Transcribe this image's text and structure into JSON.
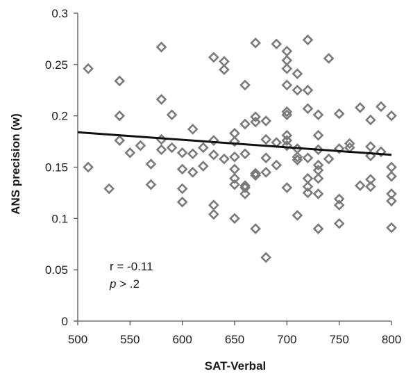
{
  "chart_data": {
    "type": "scatter",
    "xlabel": "SAT-Verbal",
    "ylabel": "ANS precision (w)",
    "xlim": [
      500,
      800
    ],
    "ylim": [
      0,
      0.3
    ],
    "x_ticks": [
      "500",
      "550",
      "600",
      "650",
      "700",
      "750",
      "800"
    ],
    "y_ticks": [
      "0",
      "0.05",
      "0.1",
      "0.15",
      "0.2",
      "0.25",
      "0.3"
    ],
    "annotation": {
      "r_text": "r = -0.11",
      "p_symbol": "p",
      "p_text": " > .2"
    },
    "trendline": {
      "x": [
        500,
        800
      ],
      "y": [
        0.184,
        0.162
      ]
    },
    "series": [
      {
        "points": [
          [
            510,
            0.246
          ],
          [
            510,
            0.15
          ],
          [
            530,
            0.129
          ],
          [
            540,
            0.234
          ],
          [
            540,
            0.2
          ],
          [
            540,
            0.176
          ],
          [
            550,
            0.164
          ],
          [
            560,
            0.171
          ],
          [
            570,
            0.153
          ],
          [
            570,
            0.133
          ],
          [
            580,
            0.267
          ],
          [
            580,
            0.216
          ],
          [
            580,
            0.177
          ],
          [
            580,
            0.167
          ],
          [
            590,
            0.201
          ],
          [
            590,
            0.169
          ],
          [
            600,
            0.164
          ],
          [
            600,
            0.148
          ],
          [
            600,
            0.129
          ],
          [
            600,
            0.116
          ],
          [
            610,
            0.187
          ],
          [
            610,
            0.163
          ],
          [
            610,
            0.145
          ],
          [
            620,
            0.169
          ],
          [
            620,
            0.151
          ],
          [
            630,
            0.257
          ],
          [
            630,
            0.176
          ],
          [
            630,
            0.162
          ],
          [
            630,
            0.113
          ],
          [
            630,
            0.104
          ],
          [
            640,
            0.253
          ],
          [
            640,
            0.245
          ],
          [
            640,
            0.158
          ],
          [
            650,
            0.183
          ],
          [
            650,
            0.175
          ],
          [
            650,
            0.16
          ],
          [
            650,
            0.148
          ],
          [
            650,
            0.139
          ],
          [
            650,
            0.133
          ],
          [
            650,
            0.1
          ],
          [
            660,
            0.23
          ],
          [
            660,
            0.192
          ],
          [
            660,
            0.163
          ],
          [
            660,
            0.132
          ],
          [
            660,
            0.13
          ],
          [
            660,
            0.124
          ],
          [
            670,
            0.271
          ],
          [
            670,
            0.199
          ],
          [
            670,
            0.194
          ],
          [
            670,
            0.144
          ],
          [
            670,
            0.142
          ],
          [
            670,
            0.09
          ],
          [
            680,
            0.195
          ],
          [
            680,
            0.177
          ],
          [
            680,
            0.159
          ],
          [
            680,
            0.145
          ],
          [
            680,
            0.062
          ],
          [
            690,
            0.27
          ],
          [
            690,
            0.174
          ],
          [
            690,
            0.152
          ],
          [
            700,
            0.263
          ],
          [
            700,
            0.254
          ],
          [
            700,
            0.246
          ],
          [
            700,
            0.23
          ],
          [
            700,
            0.204
          ],
          [
            700,
            0.201
          ],
          [
            700,
            0.181
          ],
          [
            700,
            0.176
          ],
          [
            700,
            0.171
          ],
          [
            700,
            0.13
          ],
          [
            710,
            0.241
          ],
          [
            710,
            0.225
          ],
          [
            710,
            0.168
          ],
          [
            710,
            0.16
          ],
          [
            710,
            0.157
          ],
          [
            710,
            0.103
          ],
          [
            720,
            0.274
          ],
          [
            720,
            0.225
          ],
          [
            720,
            0.207
          ],
          [
            720,
            0.159
          ],
          [
            720,
            0.139
          ],
          [
            720,
            0.131
          ],
          [
            720,
            0.125
          ],
          [
            730,
            0.201
          ],
          [
            730,
            0.181
          ],
          [
            730,
            0.167
          ],
          [
            730,
            0.152
          ],
          [
            730,
            0.147
          ],
          [
            730,
            0.139
          ],
          [
            730,
            0.124
          ],
          [
            730,
            0.09
          ],
          [
            740,
            0.256
          ],
          [
            740,
            0.158
          ],
          [
            750,
            0.202
          ],
          [
            750,
            0.168
          ],
          [
            750,
            0.119
          ],
          [
            750,
            0.113
          ],
          [
            750,
            0.095
          ],
          [
            760,
            0.173
          ],
          [
            760,
            0.169
          ],
          [
            770,
            0.208
          ],
          [
            770,
            0.132
          ],
          [
            780,
            0.196
          ],
          [
            780,
            0.17
          ],
          [
            780,
            0.161
          ],
          [
            780,
            0.138
          ],
          [
            780,
            0.131
          ],
          [
            790,
            0.209
          ],
          [
            790,
            0.165
          ],
          [
            800,
            0.2
          ],
          [
            800,
            0.15
          ],
          [
            800,
            0.141
          ],
          [
            800,
            0.124
          ],
          [
            800,
            0.117
          ],
          [
            800,
            0.091
          ]
        ]
      }
    ]
  }
}
